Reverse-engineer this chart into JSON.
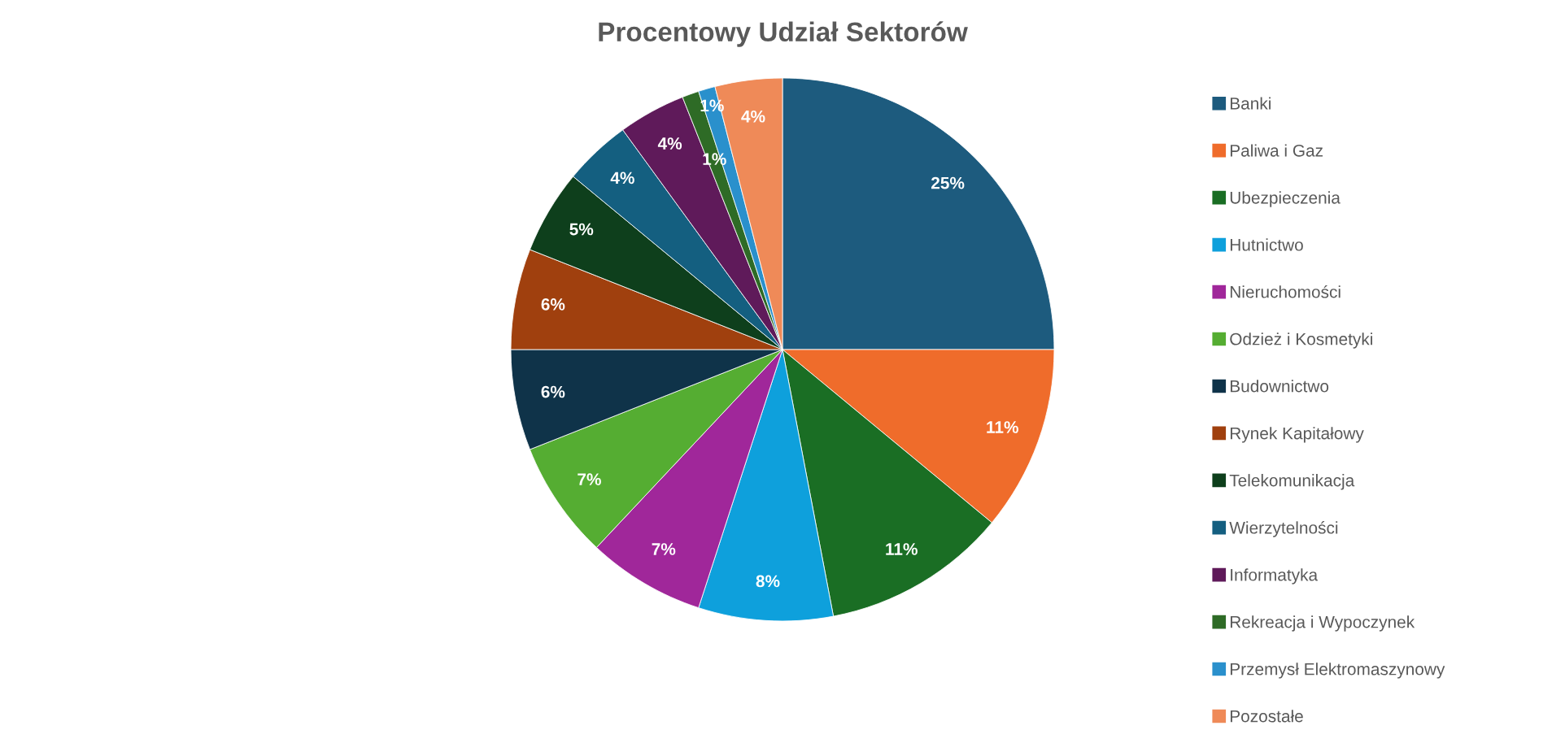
{
  "chart_data": {
    "type": "pie",
    "title": "Procentowy Udział Sektorów",
    "categories": [
      "Banki",
      "Paliwa i Gaz",
      "Ubezpieczenia",
      "Hutnictwo",
      "Nieruchomości",
      "Odzież i Kosmetyki",
      "Budownictwo",
      "Rynek Kapitałowy",
      "Telekomunikacja",
      "Wierzytelności",
      "Informatyka",
      "Rekreacja i Wypoczynek",
      "Przemysł Elektromaszynowy",
      "Pozostałe"
    ],
    "values": [
      25,
      11,
      11,
      8,
      7,
      7,
      6,
      6,
      5,
      4,
      4,
      1,
      1,
      4
    ],
    "value_labels": [
      "25%",
      "11%",
      "11%",
      "8%",
      "7%",
      "7%",
      "6%",
      "6%",
      "5%",
      "4%",
      "4%",
      "1%",
      "1%",
      "4%"
    ],
    "colors": [
      "#1d5b7e",
      "#ef6c2b",
      "#1a6e24",
      "#0ea0dc",
      "#a0279a",
      "#55ad32",
      "#0f3349",
      "#a0400e",
      "#0e3f1c",
      "#145f80",
      "#5f1a5a",
      "#2e6b26",
      "#2a90cc",
      "#ef8a58"
    ],
    "legend": "right"
  }
}
